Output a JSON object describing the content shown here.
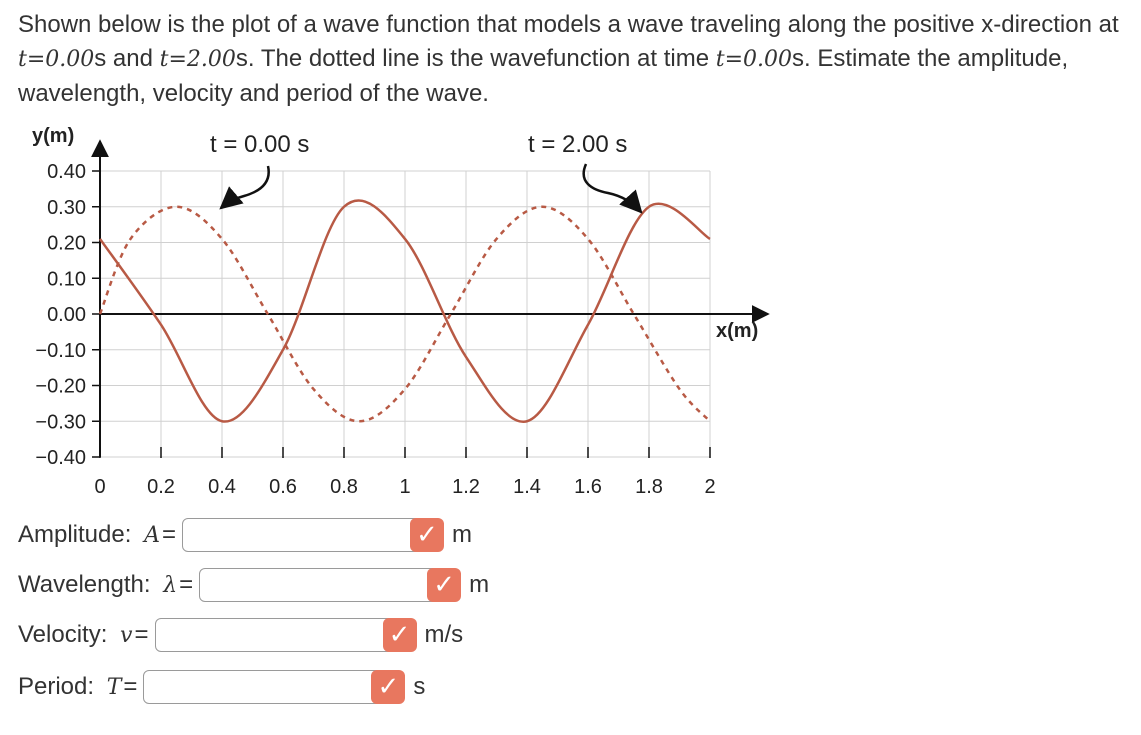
{
  "question": {
    "part1": "Shown below is the plot of a wave function that models a wave traveling along the positive x-direction at ",
    "t_sym": "t",
    "eq1": "=0.00",
    "part2": "s and ",
    "eq2": "=2.00",
    "part3": "s. The dotted line is the wavefunction at time ",
    "eq3": "=0.00",
    "part4": "s. Estimate the amplitude, wavelength, velocity and period of the wave."
  },
  "chart_data": {
    "type": "line",
    "ylabel": "y(m)",
    "xlabel": "x(m)",
    "x_ticks": [
      "0",
      "0.2",
      "0.4",
      "0.6",
      "0.8",
      "1",
      "1.2",
      "1.4",
      "1.6",
      "1.8",
      "2"
    ],
    "y_ticks": [
      "0.40",
      "0.30",
      "0.20",
      "0.10",
      "0.00",
      "−0.10",
      "−0.20",
      "−0.30",
      "−0.40"
    ],
    "xlim": [
      0,
      2
    ],
    "ylim": [
      -0.4,
      0.4
    ],
    "grid": true,
    "annotations": [
      "t = 0.00 s",
      "t = 2.00 s"
    ],
    "series": [
      {
        "style": "dashed",
        "color": "#b85a45",
        "x": [
          0,
          0.1,
          0.25,
          0.4,
          0.55,
          0.7,
          0.85,
          1.0,
          1.15,
          1.3,
          1.45,
          1.6,
          1.75,
          1.9,
          2.0
        ],
        "y": [
          0,
          0.21,
          0.3,
          0.21,
          0,
          -0.21,
          -0.3,
          -0.21,
          0,
          0.21,
          0.3,
          0.21,
          0,
          -0.21,
          -0.3
        ]
      },
      {
        "style": "solid",
        "color": "#b85a45",
        "x": [
          0,
          0.2,
          0.4,
          0.6,
          0.8,
          1.0,
          1.2,
          1.4,
          1.6,
          1.8,
          2.0
        ],
        "y": [
          0.21,
          -0.03,
          -0.3,
          -0.1,
          0.3,
          0.21,
          -0.12,
          -0.3,
          -0.03,
          0.3,
          0.21
        ]
      }
    ]
  },
  "answers": [
    {
      "label": "Amplitude: ",
      "symbol": "A",
      "eq": "=",
      "value": "",
      "unit": "m"
    },
    {
      "label": "Wavelength: ",
      "symbol": "λ",
      "eq": "=",
      "value": "",
      "unit": "m"
    },
    {
      "label": "Velocity: ",
      "symbol": "v",
      "eq": "=",
      "value": "",
      "unit": "m/s"
    },
    {
      "label": "Period: ",
      "symbol": "T",
      "eq": "=",
      "value": "",
      "unit": "s"
    }
  ],
  "check_glyph": "✓",
  "colors": {
    "wave": "#b85a45",
    "grid": "#d0d0d0",
    "check_bg": "#e8775f"
  }
}
